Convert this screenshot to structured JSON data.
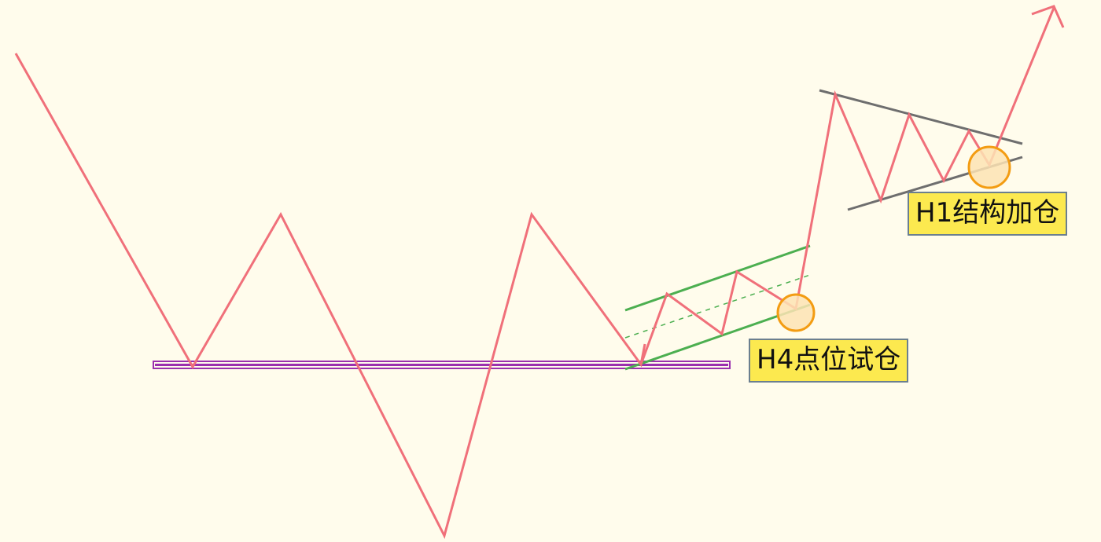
{
  "colors": {
    "background": "#fffcec",
    "price_line": "#f0707a",
    "support_line": "#9b2fae",
    "channel_line": "#4caf50",
    "triangle_line": "#6e6e6e",
    "entry_circle_fill": "#fde3b4",
    "entry_circle_stroke": "#f39c12",
    "label_fill": "#fce94f"
  },
  "labels": {
    "h4_entry": "H4点位试仓",
    "h1_add": "H1结构加仓"
  }
}
